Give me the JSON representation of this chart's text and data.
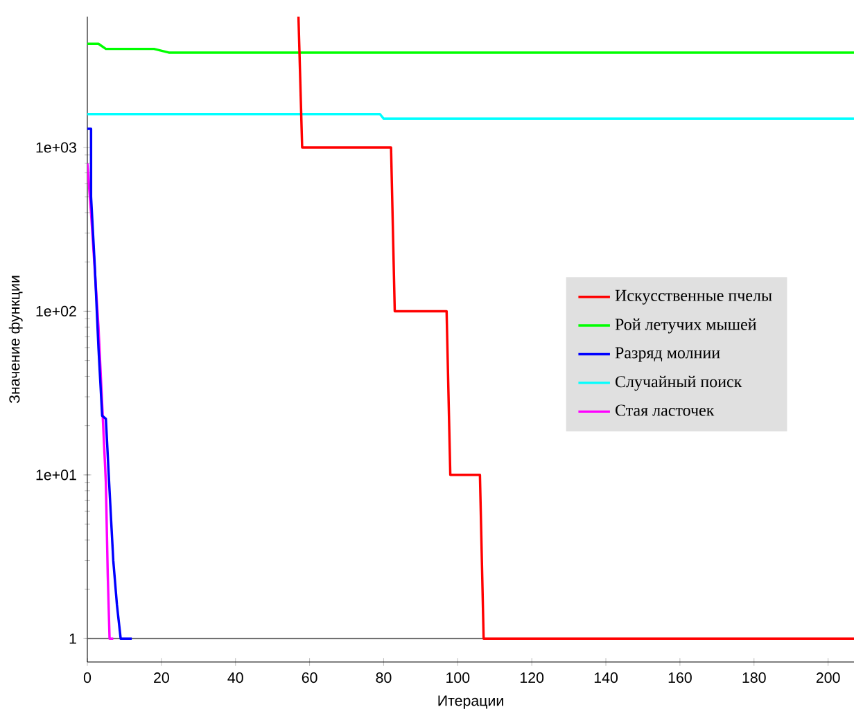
{
  "chart_data": {
    "type": "line",
    "xlabel": "Итерации",
    "ylabel": "Значение функции",
    "log": "y",
    "grid": false,
    "legend": "right",
    "marker": "none",
    "line_style": "solid",
    "xlim": [
      0,
      207
    ],
    "xticks": [
      0,
      20,
      40,
      60,
      80,
      100,
      120,
      140,
      160,
      180,
      200
    ],
    "ylim": [
      0.72,
      6300
    ],
    "yticks": [
      1,
      {
        "value": 10,
        "label": "1e+01"
      },
      {
        "value": 100,
        "label": "1e+02"
      },
      {
        "value": 1000,
        "label": "1e+03"
      }
    ],
    "ref_lines": [
      {
        "axis": "y",
        "value": 1,
        "color": "#606060"
      }
    ],
    "series": [
      {
        "name": "Искусственные пчелы",
        "color": "#ff0000",
        "x": [
          57,
          58,
          82,
          83,
          97,
          98,
          106,
          107,
          207
        ],
        "values": [
          6300,
          1000,
          1000,
          100,
          100,
          10,
          10,
          1,
          1
        ]
      },
      {
        "name": "Рой летучих мышей",
        "color": "#00ff00",
        "x": [
          0,
          3,
          5,
          18,
          22,
          207
        ],
        "values": [
          4300,
          4300,
          4000,
          4000,
          3800,
          3800
        ]
      },
      {
        "name": "Разряд молнии",
        "color": "#0000ff",
        "x": [
          0,
          1,
          1,
          2,
          3,
          4,
          5,
          6,
          7,
          8,
          9,
          12
        ],
        "values": [
          1300,
          1300,
          500,
          190,
          60,
          23,
          22,
          8,
          3,
          1.6,
          1,
          1
        ]
      },
      {
        "name": "Случайный поиск",
        "color": "#00ffff",
        "x": [
          0,
          79,
          80,
          207
        ],
        "values": [
          1600,
          1600,
          1500,
          1500
        ]
      },
      {
        "name": "Стая ласточек",
        "color": "#ff00ff",
        "x": [
          0,
          1,
          2,
          3,
          4,
          5,
          5.5,
          6,
          7
        ],
        "values": [
          800,
          400,
          180,
          80,
          27,
          9,
          2.5,
          1,
          1
        ]
      }
    ]
  }
}
